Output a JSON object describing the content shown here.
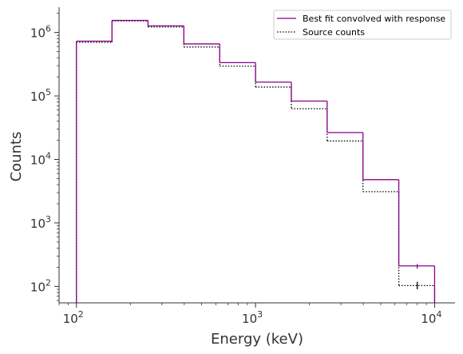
{
  "chart_data": {
    "type": "line",
    "subtype": "step-histogram",
    "title": "",
    "xlabel": "Energy (keV)",
    "ylabel": "Counts",
    "xscale": "log",
    "yscale": "log",
    "xlim": [
      80,
      13000
    ],
    "ylim": [
      55,
      2500000
    ],
    "grid": false,
    "legend_position": "top-right",
    "bin_edges": [
      100,
      158,
      251,
      398,
      631,
      1000,
      1585,
      2512,
      3981,
      6310,
      10000
    ],
    "x_ticks": [
      {
        "value": 100,
        "base": "10",
        "exp": "2"
      },
      {
        "value": 1000,
        "base": "10",
        "exp": "3"
      },
      {
        "value": 10000,
        "base": "10",
        "exp": "4"
      }
    ],
    "y_ticks": [
      {
        "value": 100,
        "base": "10",
        "exp": "2"
      },
      {
        "value": 1000,
        "base": "10",
        "exp": "3"
      },
      {
        "value": 10000,
        "base": "10",
        "exp": "4"
      },
      {
        "value": 100000,
        "base": "10",
        "exp": "5"
      },
      {
        "value": 1000000,
        "base": "10",
        "exp": "6"
      }
    ],
    "series": [
      {
        "name": "Best fit convolved with response",
        "color": "#8b008b",
        "style": "solid",
        "values": [
          730000,
          1550000,
          1270000,
          660000,
          335000,
          165000,
          83000,
          26500,
          4800,
          210
        ],
        "error_bars": [
          {
            "x": 8000,
            "lo": 190,
            "hi": 225
          }
        ]
      },
      {
        "name": "Source counts",
        "color": "#000000",
        "style": "dotted",
        "values": [
          700000,
          1520000,
          1220000,
          590000,
          295000,
          138000,
          63000,
          19500,
          3100,
          103
        ],
        "error_bars": [
          {
            "x": 8000,
            "lo": 90,
            "hi": 118
          }
        ]
      }
    ]
  }
}
